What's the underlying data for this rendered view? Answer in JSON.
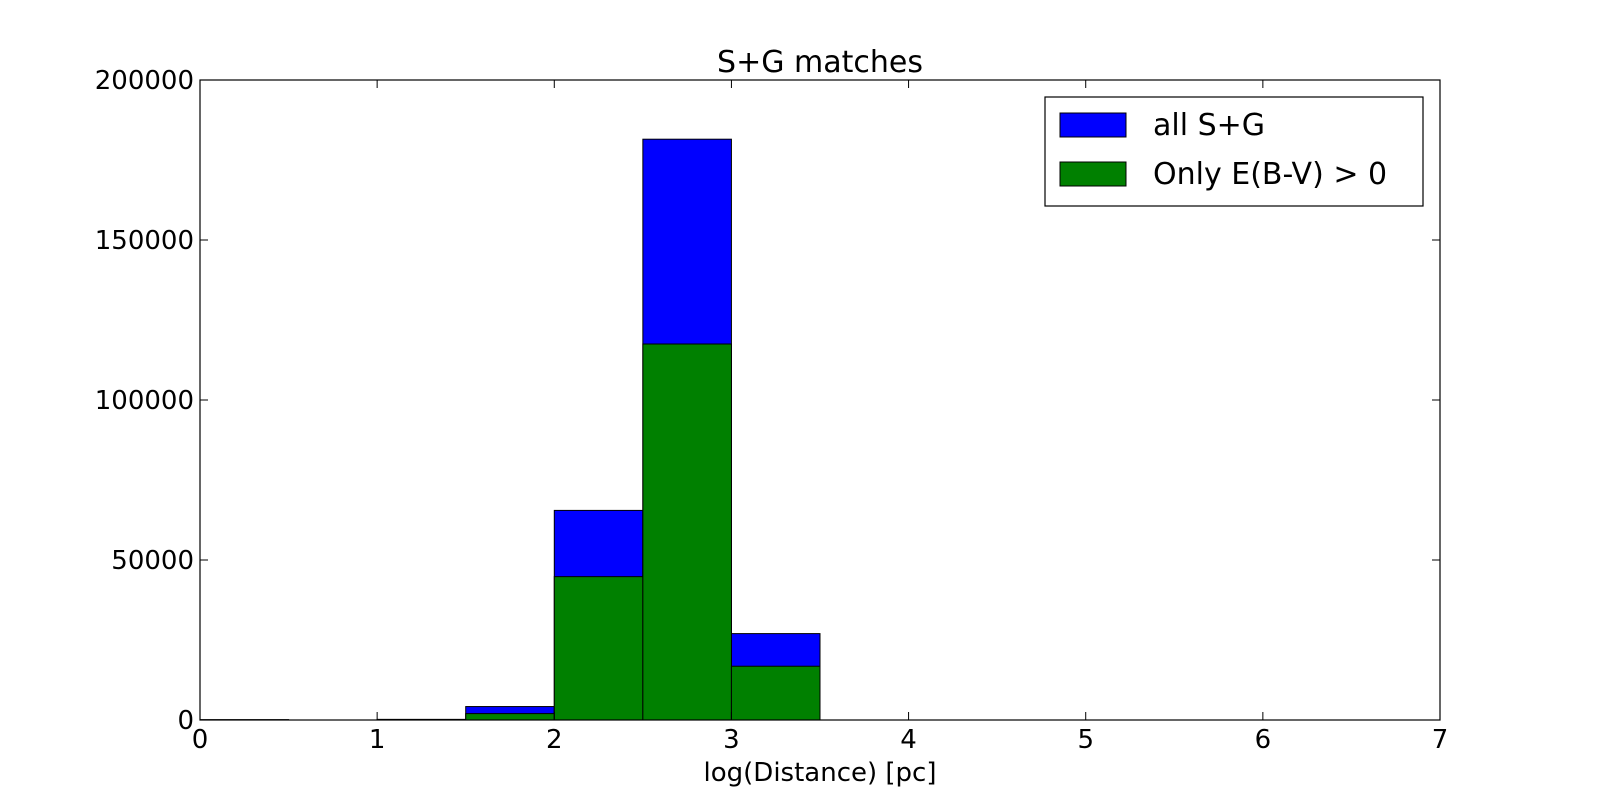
{
  "chart_data": {
    "type": "bar",
    "title": "S+G matches",
    "xlabel": "log(Distance) [pc]",
    "ylabel": "",
    "xlim": [
      0,
      7
    ],
    "ylim": [
      0,
      200000
    ],
    "x_ticks": [
      "0",
      "1",
      "2",
      "3",
      "4",
      "5",
      "6",
      "7"
    ],
    "y_ticks": [
      "0",
      "50000",
      "100000",
      "150000",
      "200000"
    ],
    "bin_edges": [
      0,
      0.5,
      1.0,
      1.5,
      2.0,
      2.5,
      3.0,
      3.5
    ],
    "grid": false,
    "legend_position": "top-right",
    "series": [
      {
        "name": "all S+G",
        "color": "#0000ff",
        "values": [
          100,
          0,
          200,
          4200,
          65500,
          181500,
          27000
        ]
      },
      {
        "name": "Only E(B-V) > 0",
        "color": "#008000",
        "values": [
          50,
          0,
          100,
          2000,
          44800,
          117500,
          16800
        ]
      }
    ]
  }
}
